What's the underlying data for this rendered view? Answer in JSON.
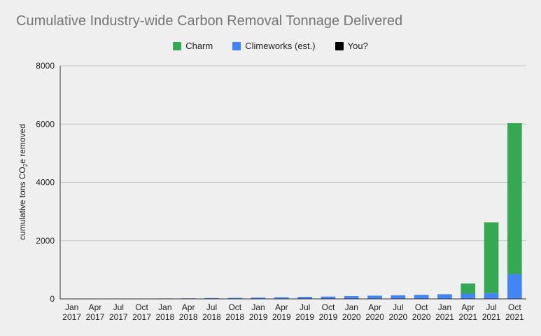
{
  "chart_data": {
    "type": "bar",
    "stacked": true,
    "title": "Cumulative Industry-wide Carbon Removal Tonnage Delivered",
    "ylabel_parts": [
      "cumulative tons CO",
      "2",
      "e removed"
    ],
    "xlabel": "",
    "ylim": [
      0,
      8000
    ],
    "yticks": [
      "0",
      "2000",
      "4000",
      "6000",
      "8000"
    ],
    "ytick_values": [
      0,
      2000,
      4000,
      6000,
      8000
    ],
    "grid": true,
    "legend_position": "top-center",
    "categories": [
      [
        "Jan",
        "2017"
      ],
      [
        "Apr",
        "2017"
      ],
      [
        "Jul",
        "2017"
      ],
      [
        "Oct",
        "2017"
      ],
      [
        "Jan",
        "2018"
      ],
      [
        "Apr",
        "2018"
      ],
      [
        "Jul",
        "2018"
      ],
      [
        "Oct",
        "2018"
      ],
      [
        "Jan",
        "2019"
      ],
      [
        "Apr",
        "2019"
      ],
      [
        "Jul",
        "2019"
      ],
      [
        "Oct",
        "2019"
      ],
      [
        "Jan",
        "2020"
      ],
      [
        "Apr",
        "2020"
      ],
      [
        "Jul",
        "2020"
      ],
      [
        "Oct",
        "2020"
      ],
      [
        "Jan",
        "2021"
      ],
      [
        "Apr",
        "2021"
      ],
      [
        "Jul",
        "2021"
      ],
      [
        "Oct",
        "2021"
      ]
    ],
    "series": [
      {
        "name": "Climeworks (est.)",
        "color": "#4285f4",
        "values": [
          0,
          0,
          0,
          0,
          15,
          20,
          30,
          35,
          45,
          55,
          70,
          80,
          95,
          110,
          125,
          140,
          160,
          180,
          200,
          850
        ]
      },
      {
        "name": "Charm",
        "color": "#34a853",
        "values": [
          0,
          0,
          0,
          0,
          0,
          0,
          0,
          0,
          0,
          0,
          0,
          0,
          0,
          0,
          0,
          0,
          0,
          350,
          2430,
          5180
        ]
      },
      {
        "name": "You?",
        "color": "#000000",
        "values": [
          0,
          0,
          0,
          0,
          0,
          0,
          0,
          0,
          0,
          0,
          0,
          0,
          0,
          0,
          0,
          0,
          0,
          0,
          0,
          0
        ]
      }
    ],
    "legend_order": [
      "Charm",
      "Climeworks (est.)",
      "You?"
    ]
  }
}
